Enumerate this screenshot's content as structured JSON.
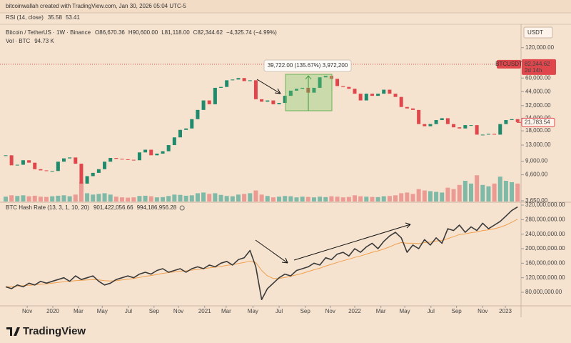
{
  "header": {
    "attribution": "bitcoinwallah created with TradingView.com, Jan 30, 2026 05:04 UTC-5",
    "rsi_label": "RSI (14, close)",
    "rsi_values": [
      {
        "text": "35.58",
        "color": "#7e57c2"
      },
      {
        "text": "53.41",
        "color": "#e8b84a"
      }
    ]
  },
  "footer": {
    "brand": "TradingView"
  },
  "chart_data": [
    {
      "type": "candlestick",
      "title": "Bitcoin / TetherUS · 1W · Binance",
      "quote": [
        {
          "label": "O",
          "value": "86,670.36"
        },
        {
          "label": "H",
          "value": "90,600.00"
        },
        {
          "label": "L",
          "value": "81,118.00"
        },
        {
          "label": "C",
          "value": "82,344.62"
        }
      ],
      "change": "−4,325.74 (−4.99%)",
      "volume_label": "Vol · BTC",
      "volume_value": "94.73 K",
      "currency": "USDT",
      "symbol_tag": "BTCUSDT",
      "countdown": "2d 14h",
      "last_price": {
        "value": 82344.62,
        "label": "82,344.62"
      },
      "price_marker": {
        "value": 21783.54,
        "label": "21,783.54"
      },
      "annotation": "39,722.00 (135.67%) 3,972,200",
      "log_scale": true,
      "ylim": [
        3530,
        198000
      ],
      "yticks": [
        {
          "value": 120000,
          "label": "120,000.00"
        },
        {
          "value": 60000,
          "label": "60,000.00"
        },
        {
          "value": 44000,
          "label": "44,000.00"
        },
        {
          "value": 32000,
          "label": "32,000.00"
        },
        {
          "value": 24000,
          "label": "24,000.00"
        },
        {
          "value": 18000,
          "label": "18,000.00"
        },
        {
          "value": 13000,
          "label": "13,000.00"
        },
        {
          "value": 9000,
          "label": "9,000.00"
        },
        {
          "value": 6600,
          "label": "6,600.00"
        },
        {
          "value": 3650,
          "label": "3,650.00"
        }
      ],
      "xlim": [
        -0.98,
        88.59
      ],
      "volume_lim": [
        0,
        3000000
      ],
      "up_color": "#1f8a6c",
      "down_color": "#e0474c",
      "volume_up_color": "#7fb9a8",
      "volume_down_color": "#eb9a94",
      "close": [
        10300,
        8200,
        8300,
        9200,
        8700,
        7500,
        7300,
        7200,
        7200,
        8900,
        9600,
        9800,
        8500,
        5400,
        6400,
        6900,
        7500,
        8900,
        9700,
        9500,
        9400,
        9300,
        9200,
        11000,
        11700,
        10300,
        10700,
        11300,
        13000,
        15500,
        18400,
        19000,
        23500,
        29000,
        36000,
        33000,
        48000,
        49000,
        57000,
        58000,
        60000,
        56000,
        57000,
        37000,
        35000,
        36000,
        33000,
        34000,
        40000,
        45000,
        47000,
        48000,
        43000,
        48000,
        61000,
        63000,
        59000,
        50000,
        49000,
        47000,
        42000,
        36000,
        42000,
        40000,
        42000,
        46000,
        42000,
        39000,
        31000,
        30000,
        29000,
        21000,
        20000,
        21000,
        23000,
        24000,
        21000,
        19500,
        19000,
        20500,
        20500,
        16500,
        16500,
        16800,
        16500,
        21000,
        23000,
        23500,
        22000
      ],
      "volume": [
        350000,
        450000,
        400000,
        450000,
        380000,
        420000,
        350000,
        330000,
        380000,
        420000,
        450000,
        380000,
        500000,
        1400000,
        600000,
        500000,
        550000,
        600000,
        500000,
        350000,
        300000,
        280000,
        300000,
        400000,
        420000,
        380000,
        300000,
        320000,
        400000,
        500000,
        480000,
        420000,
        450000,
        600000,
        650000,
        550000,
        600000,
        480000,
        400000,
        380000,
        500000,
        550000,
        600000,
        800000,
        500000,
        400000,
        300000,
        350000,
        400000,
        380000,
        300000,
        350000,
        330000,
        300000,
        350000,
        320000,
        380000,
        350000,
        300000,
        330000,
        450000,
        380000,
        350000,
        330000,
        320000,
        380000,
        400000,
        450000,
        600000,
        650000,
        550000,
        900000,
        800000,
        750000,
        700000,
        650000,
        1000000,
        900000,
        1200000,
        1500000,
        1300000,
        1900000,
        1200000,
        1100000,
        1300000,
        1800000,
        1500000,
        1400000,
        1300000
      ]
    },
    {
      "type": "line",
      "title": "BTC Hash Rate (13, 3, 1, 10, 20)",
      "legend_values": [
        {
          "text": "901,422,056.66",
          "color": "#333333"
        },
        {
          "text": "994,186,956.28",
          "color": "#f0a050"
        }
      ],
      "xlim": [
        -0.98,
        88.59
      ],
      "ylim": [
        42600000,
        327900000
      ],
      "yticks": [
        {
          "value": 320000000,
          "label": "320,000,000.00"
        },
        {
          "value": 280000000,
          "label": "280,000,000.00"
        },
        {
          "value": 240000000,
          "label": "240,000,000.00"
        },
        {
          "value": 200000000,
          "label": "200,000,000.00"
        },
        {
          "value": 160000000,
          "label": "160,000,000.00"
        },
        {
          "value": 120000000,
          "label": "120,000,000.00"
        },
        {
          "value": 80000000,
          "label": "80,000,000.00"
        }
      ],
      "xticks": [
        {
          "value": 3.7,
          "label": "Nov"
        },
        {
          "value": 8.1,
          "label": "2020"
        },
        {
          "value": 12.5,
          "label": "Mar"
        },
        {
          "value": 16.6,
          "label": "May"
        },
        {
          "value": 21.1,
          "label": "Jul"
        },
        {
          "value": 25.5,
          "label": "Sep"
        },
        {
          "value": 29.7,
          "label": "Nov"
        },
        {
          "value": 34.2,
          "label": "2021"
        },
        {
          "value": 37.9,
          "label": "Mar"
        },
        {
          "value": 42.5,
          "label": "May"
        },
        {
          "value": 47,
          "label": "Jul"
        },
        {
          "value": 51.5,
          "label": "Sep"
        },
        {
          "value": 55.8,
          "label": "Nov"
        },
        {
          "value": 60,
          "label": "2022"
        },
        {
          "value": 64.5,
          "label": "Mar"
        },
        {
          "value": 68.6,
          "label": "May"
        },
        {
          "value": 73.1,
          "label": "Jul"
        },
        {
          "value": 77.5,
          "label": "Sep"
        },
        {
          "value": 82,
          "label": "Nov"
        },
        {
          "value": 85.9,
          "label": "2023"
        }
      ],
      "series": [
        {
          "color": "#3a3a3a",
          "values": [
            95000000,
            90000000,
            100000000,
            95000000,
            105000000,
            100000000,
            110000000,
            105000000,
            110000000,
            115000000,
            120000000,
            110000000,
            125000000,
            115000000,
            120000000,
            125000000,
            110000000,
            100000000,
            105000000,
            115000000,
            120000000,
            125000000,
            120000000,
            130000000,
            135000000,
            130000000,
            140000000,
            145000000,
            135000000,
            140000000,
            145000000,
            135000000,
            145000000,
            150000000,
            145000000,
            155000000,
            150000000,
            160000000,
            165000000,
            155000000,
            170000000,
            175000000,
            195000000,
            150000000,
            60000000,
            90000000,
            105000000,
            120000000,
            130000000,
            125000000,
            140000000,
            145000000,
            150000000,
            160000000,
            155000000,
            175000000,
            170000000,
            185000000,
            190000000,
            180000000,
            200000000,
            190000000,
            205000000,
            215000000,
            200000000,
            220000000,
            235000000,
            245000000,
            230000000,
            190000000,
            210000000,
            200000000,
            225000000,
            210000000,
            230000000,
            215000000,
            255000000,
            250000000,
            265000000,
            245000000,
            260000000,
            250000000,
            270000000,
            255000000,
            265000000,
            275000000,
            290000000,
            305000000,
            315000000
          ]
        },
        {
          "color": "#f0a050",
          "values": [
            95000000,
            96000000,
            97000000,
            98000000,
            99000000,
            100000000,
            102000000,
            103000000,
            105000000,
            107000000,
            109000000,
            110000000,
            112000000,
            113000000,
            114000000,
            115000000,
            114000000,
            112000000,
            111000000,
            112000000,
            114000000,
            116000000,
            118000000,
            121000000,
            124000000,
            126000000,
            129000000,
            132000000,
            134000000,
            136000000,
            138000000,
            139000000,
            141000000,
            143000000,
            145000000,
            147000000,
            149000000,
            151000000,
            154000000,
            156000000,
            159000000,
            162000000,
            166000000,
            162000000,
            140000000,
            125000000,
            118000000,
            118000000,
            121000000,
            124000000,
            128000000,
            132000000,
            137000000,
            142000000,
            146000000,
            152000000,
            157000000,
            162000000,
            167000000,
            171000000,
            176000000,
            180000000,
            185000000,
            190000000,
            194000000,
            199000000,
            205000000,
            212000000,
            217000000,
            215000000,
            215000000,
            214000000,
            217000000,
            218000000,
            221000000,
            222000000,
            228000000,
            233000000,
            239000000,
            241000000,
            244000000,
            246000000,
            250000000,
            252000000,
            255000000,
            259000000,
            265000000,
            273000000,
            281000000
          ]
        }
      ]
    }
  ]
}
